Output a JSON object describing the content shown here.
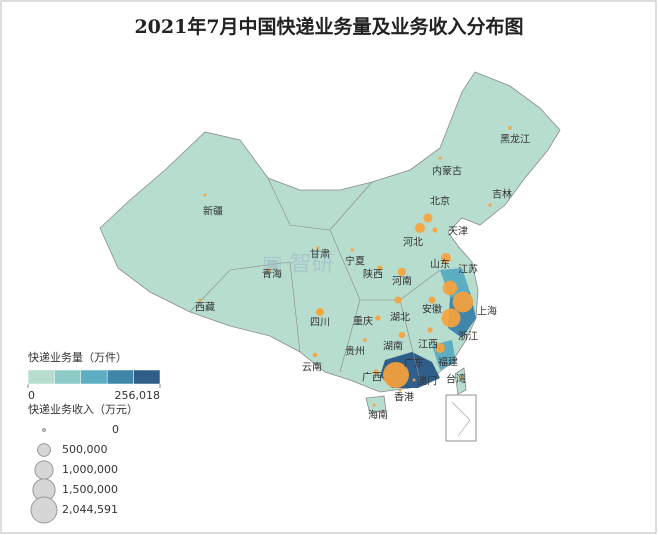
{
  "title": "2021年7月中国快递业务量及业务收入分布图",
  "volume_legend": {
    "title": "快递业务量（万件）",
    "colors": [
      "#b7ddcf",
      "#8ccbc8",
      "#5eaec3",
      "#3f86aa",
      "#2f5e8b"
    ],
    "ticks": [
      0,
      {
        "value": 256018,
        "label": "256,018"
      }
    ]
  },
  "revenue_legend": {
    "title": "快递业务收入（万元）",
    "sizes": [
      0,
      {
        "value": 500000,
        "label": "500,000"
      },
      {
        "value": 1000000,
        "label": "1,000,000"
      },
      {
        "value": 1500000,
        "label": "1,500,000"
      },
      {
        "value": 2044591,
        "label": "2,044,591"
      }
    ]
  },
  "provinces": [
    {
      "name": "黑龙江",
      "revenue": 40000
    },
    {
      "name": "内蒙古",
      "revenue": 20000
    },
    {
      "name": "吉林",
      "revenue": 30000
    },
    {
      "name": "新疆",
      "revenue": 15000
    },
    {
      "name": "北京",
      "revenue": 300000
    },
    {
      "name": "天津",
      "revenue": 80000
    },
    {
      "name": "河北",
      "revenue": 250000
    },
    {
      "name": "甘肃",
      "revenue": 15000
    },
    {
      "name": "宁夏",
      "revenue": 8000
    },
    {
      "name": "青海",
      "revenue": 4000
    },
    {
      "name": "陕西",
      "revenue": 80000
    },
    {
      "name": "河南",
      "revenue": 200000
    },
    {
      "name": "山东",
      "revenue": 300000
    },
    {
      "name": "江苏",
      "revenue": 650000
    },
    {
      "name": "上海",
      "revenue": 1300000
    },
    {
      "name": "安徽",
      "revenue": 150000
    },
    {
      "name": "浙江",
      "revenue": 1100000
    },
    {
      "name": "湖北",
      "revenue": 150000
    },
    {
      "name": "四川",
      "revenue": 200000
    },
    {
      "name": "西藏",
      "revenue": 3000
    },
    {
      "name": "重庆",
      "revenue": 90000
    },
    {
      "name": "贵州",
      "revenue": 40000
    },
    {
      "name": "湖南",
      "revenue": 120000
    },
    {
      "name": "江西",
      "revenue": 90000
    },
    {
      "name": "福建",
      "revenue": 300000
    },
    {
      "name": "云南",
      "revenue": 60000
    },
    {
      "name": "广西",
      "revenue": 80000
    },
    {
      "name": "广东",
      "revenue": 2044591
    },
    {
      "name": "澳门",
      "revenue": 1000
    },
    {
      "name": "香港",
      "revenue": 1000
    },
    {
      "name": "台湾",
      "revenue": 1000
    },
    {
      "name": "海南",
      "revenue": 20000
    }
  ]
}
